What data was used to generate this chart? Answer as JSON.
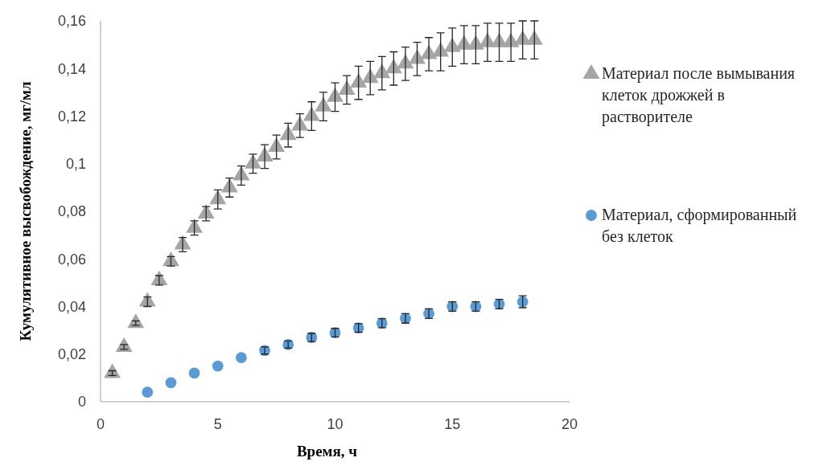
{
  "chart_data": {
    "type": "scatter",
    "xlabel": "Время, ч",
    "ylabel": "Кумулятивное высвобождение, мг/мл",
    "xlim": [
      0,
      20
    ],
    "xticks": [
      0,
      5,
      10,
      15,
      20
    ],
    "ylim": [
      0,
      0.16
    ],
    "yticks": [
      0,
      {
        "value": 0.02,
        "label": "0,02"
      },
      {
        "value": 0.04,
        "label": "0,04"
      },
      {
        "value": 0.06,
        "label": "0,06"
      },
      {
        "value": 0.08,
        "label": "0,08"
      },
      {
        "value": 0.1,
        "label": "0,1"
      },
      {
        "value": 0.12,
        "label": "0,12"
      },
      {
        "value": 0.14,
        "label": "0,14"
      },
      {
        "value": 0.16,
        "label": "0,16"
      }
    ],
    "grid": false,
    "legend": "right",
    "series": [
      {
        "name": "Материал после вымывания клеток дрожжей в растворителе",
        "color": "#a5a5a5",
        "marker": "triangle",
        "x": [
          0.5,
          1,
          1.5,
          2,
          2.5,
          3,
          3.5,
          4,
          4.5,
          5,
          5.5,
          6,
          6.5,
          7,
          7.5,
          8,
          8.5,
          9,
          9.5,
          10,
          10.5,
          11,
          11.5,
          12,
          12.5,
          13,
          13.5,
          14,
          14.5,
          15,
          15.5,
          16,
          16.5,
          17,
          17.5,
          18,
          18.5
        ],
        "values": [
          0.012,
          0.023,
          0.033,
          0.042,
          0.051,
          0.059,
          0.066,
          0.073,
          0.079,
          0.085,
          0.09,
          0.095,
          0.1,
          0.103,
          0.107,
          0.112,
          0.116,
          0.12,
          0.124,
          0.128,
          0.131,
          0.134,
          0.136,
          0.138,
          0.14,
          0.142,
          0.144,
          0.146,
          0.147,
          0.149,
          0.15,
          0.15,
          0.151,
          0.151,
          0.151,
          0.152,
          0.152
        ],
        "errors": [
          0.001,
          0.001,
          0.001,
          0.002,
          0.002,
          0.002,
          0.003,
          0.003,
          0.003,
          0.004,
          0.004,
          0.004,
          0.004,
          0.005,
          0.005,
          0.005,
          0.005,
          0.006,
          0.006,
          0.006,
          0.006,
          0.007,
          0.007,
          0.007,
          0.007,
          0.007,
          0.007,
          0.007,
          0.008,
          0.008,
          0.008,
          0.008,
          0.008,
          0.008,
          0.008,
          0.008,
          0.008
        ]
      },
      {
        "name": "Материал, сформированный без клеток",
        "color": "#5b9bd5",
        "marker": "circle",
        "x": [
          2,
          3,
          4,
          5,
          6,
          7,
          8,
          9,
          10,
          11,
          12,
          13,
          14,
          15,
          16,
          17,
          18
        ],
        "values": [
          0.004,
          0.008,
          0.012,
          0.015,
          0.0185,
          0.0215,
          0.024,
          0.027,
          0.029,
          0.031,
          0.033,
          0.035,
          0.037,
          0.04,
          0.04,
          0.041,
          0.042
        ],
        "errors": [
          null,
          null,
          null,
          null,
          null,
          0.0015,
          0.0015,
          0.0017,
          0.0018,
          0.0018,
          0.0019,
          0.002,
          0.002,
          0.002,
          0.002,
          0.002,
          0.0025
        ]
      }
    ]
  }
}
